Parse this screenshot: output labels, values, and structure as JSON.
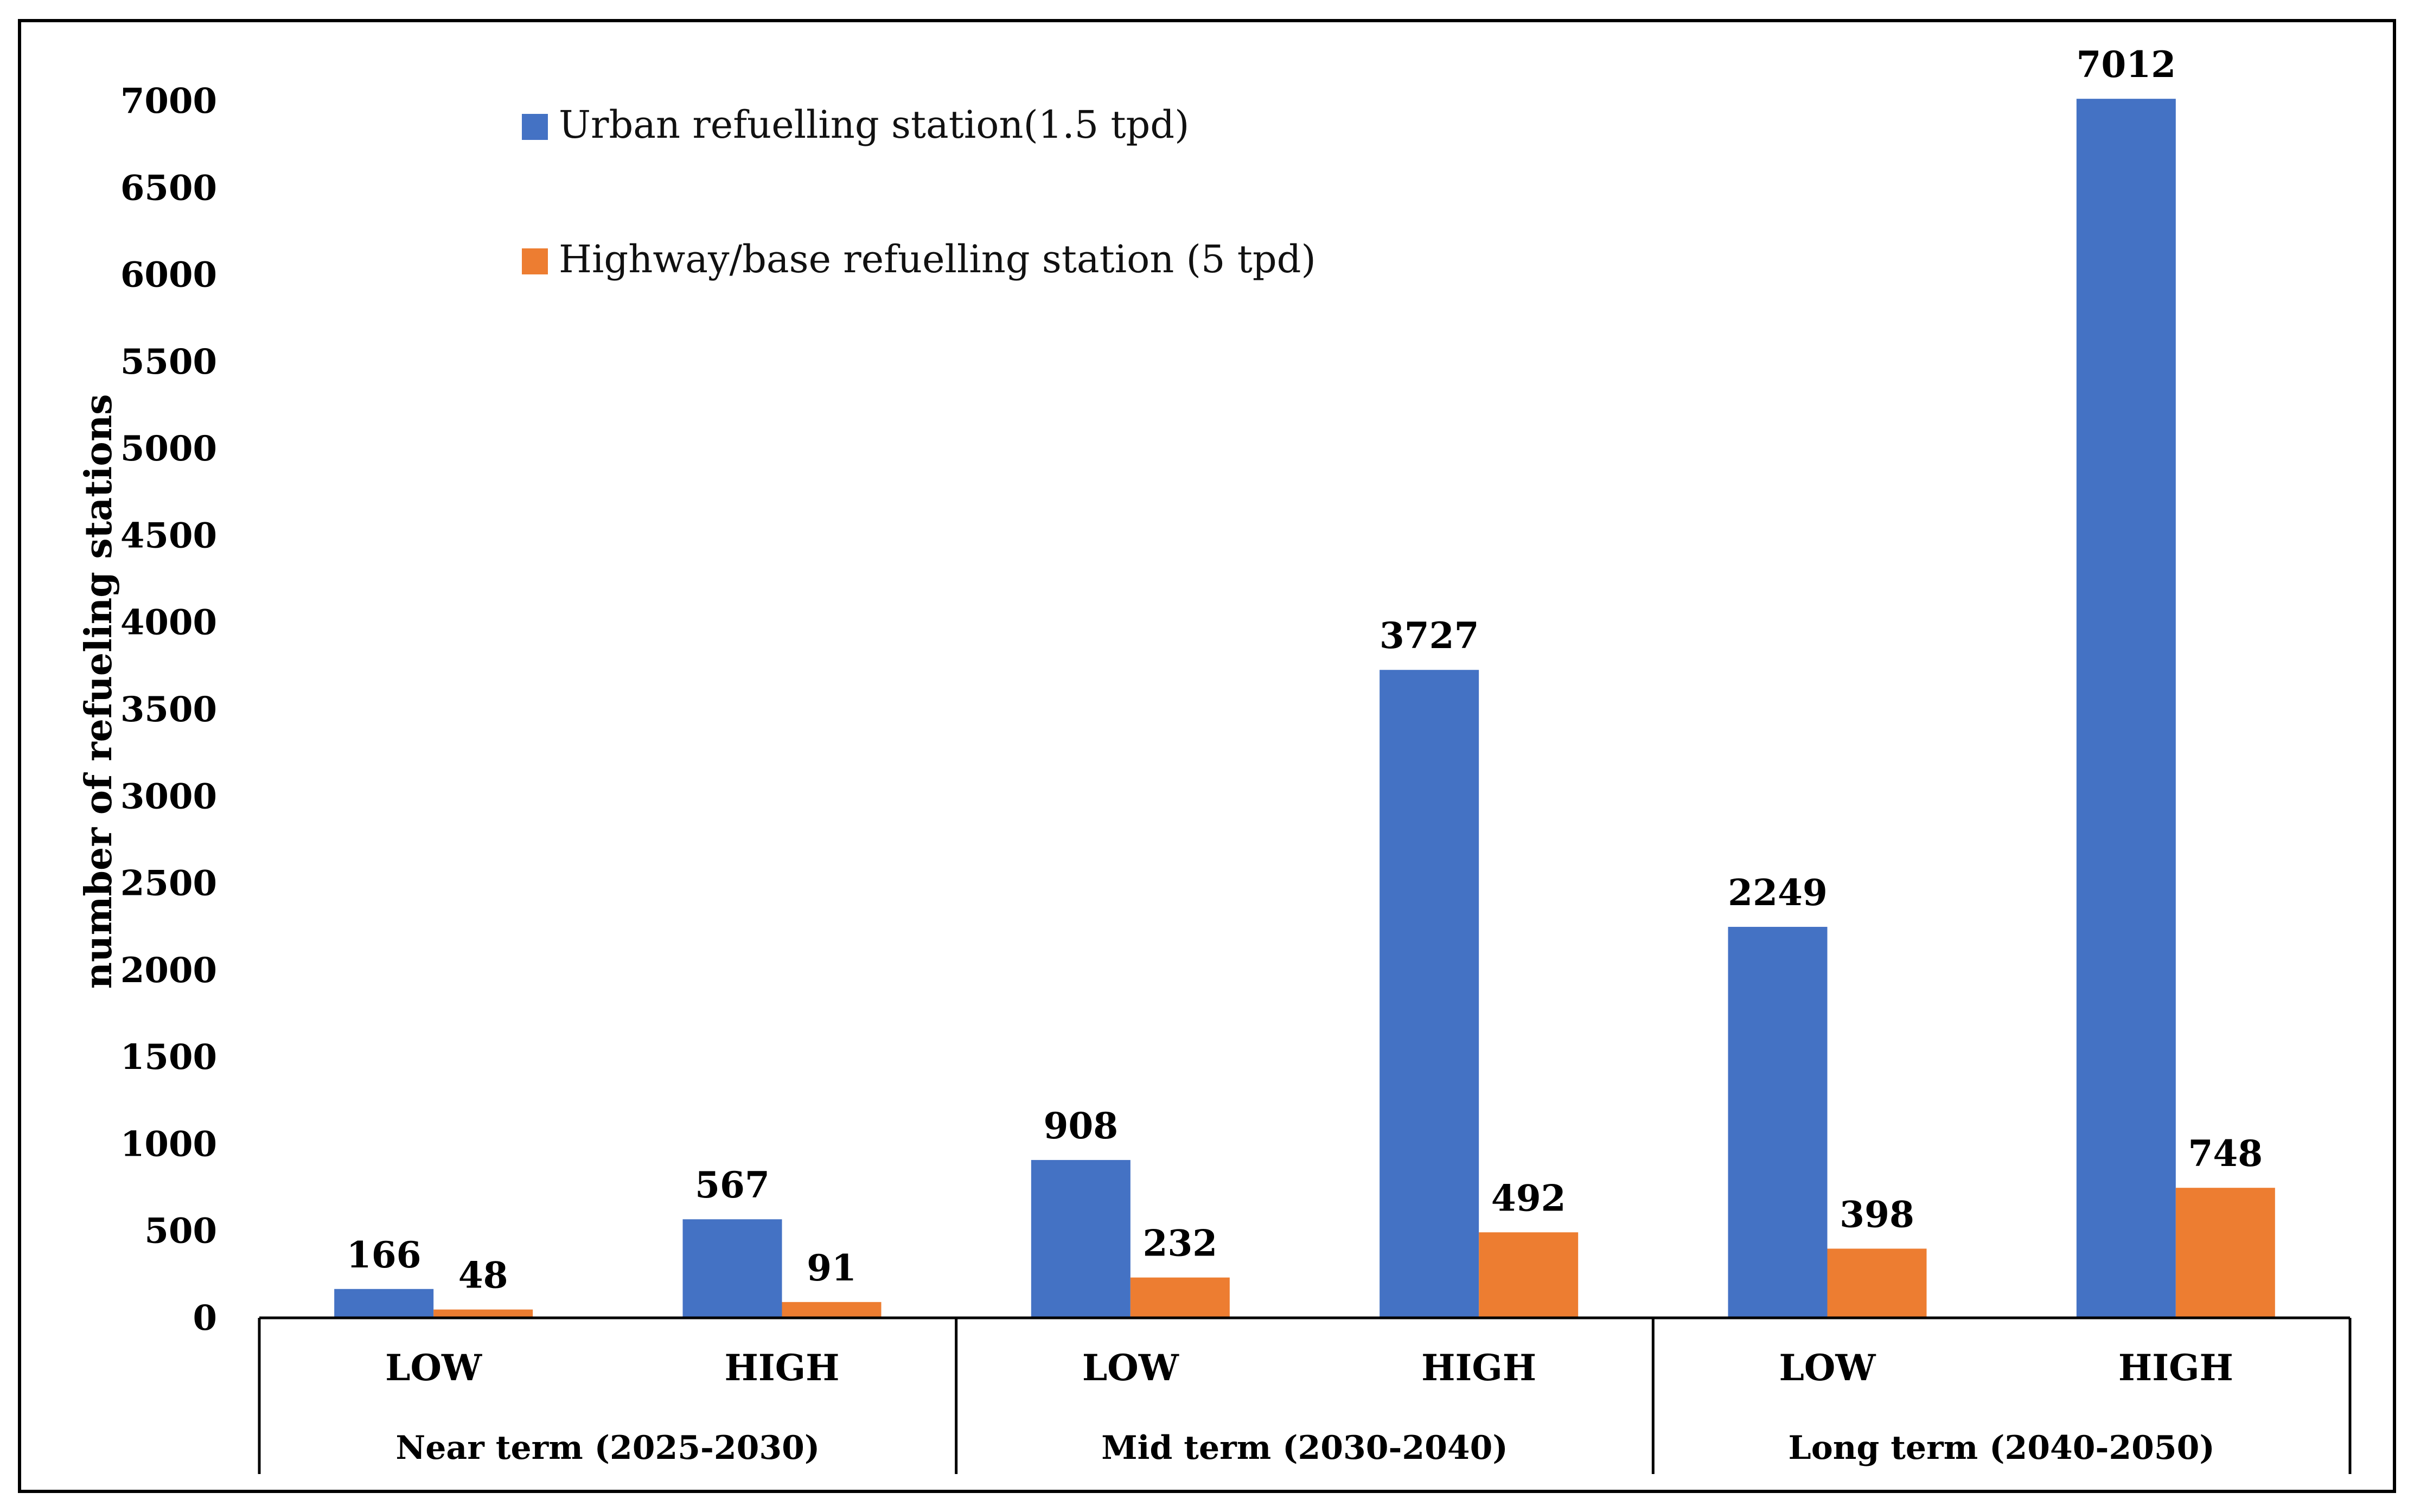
{
  "chart_data": {
    "type": "bar",
    "title": "",
    "xlabel": "",
    "ylabel": "number of refueling stations",
    "ylim": [
      0,
      7000
    ],
    "yticks": [
      0,
      500,
      1000,
      1500,
      2000,
      2500,
      3000,
      3500,
      4000,
      4500,
      5000,
      5500,
      6000,
      6500,
      7000
    ],
    "grid": false,
    "legend_position": "top-left",
    "groups": [
      {
        "label": "Near term (2025-2030)",
        "categories": [
          "LOW",
          "HIGH"
        ]
      },
      {
        "label": "Mid term (2030-2040)",
        "categories": [
          "LOW",
          "HIGH"
        ]
      },
      {
        "label": "Long term (2040-2050)",
        "categories": [
          "LOW",
          "HIGH"
        ]
      }
    ],
    "categories": [
      "LOW",
      "HIGH",
      "LOW",
      "HIGH",
      "LOW",
      "HIGH"
    ],
    "series": [
      {
        "name": "Urban refuelling station(1.5 tpd)",
        "color": "#4472C4",
        "values": [
          166,
          567,
          908,
          3727,
          2249,
          7012
        ]
      },
      {
        "name": "Highway/base refuelling station (5 tpd)",
        "color": "#ED7D31",
        "values": [
          48,
          91,
          232,
          492,
          398,
          748
        ]
      }
    ]
  }
}
